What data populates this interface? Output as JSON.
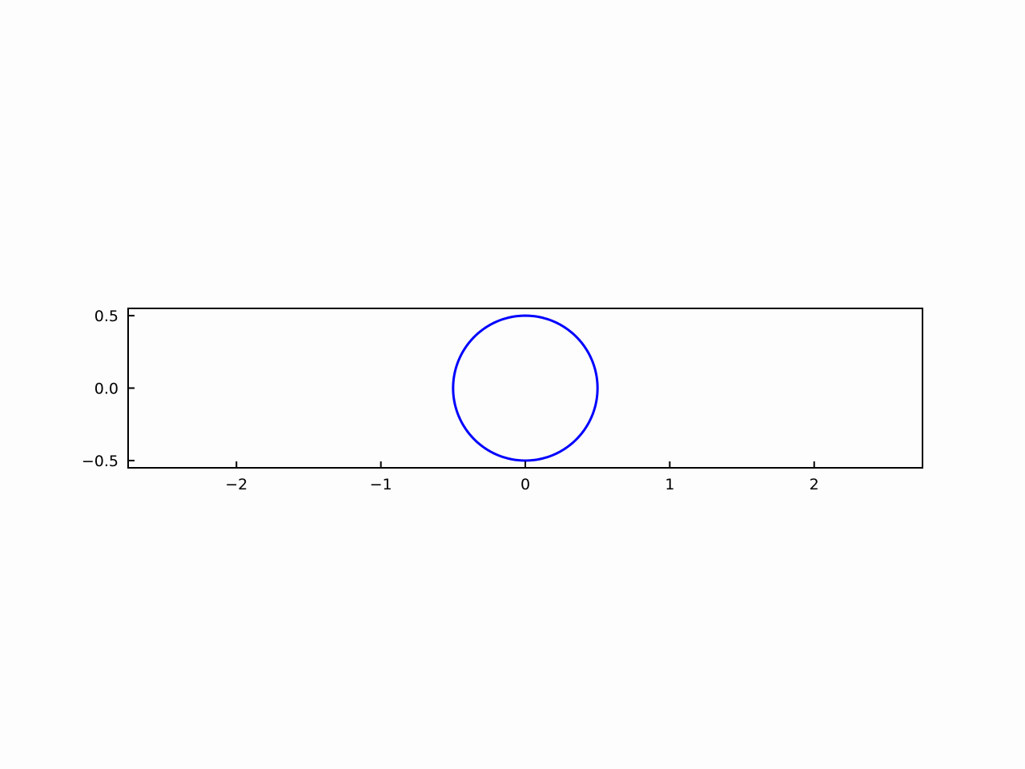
{
  "chart_data": {
    "type": "line",
    "title": "",
    "xlabel": "",
    "ylabel": "",
    "xlim": [
      -2.75,
      2.75
    ],
    "ylim": [
      -0.55,
      0.55
    ],
    "aspect": "equal",
    "grid": false,
    "tick_direction": "in",
    "x_ticks": [
      {
        "value": -2,
        "label": "−2"
      },
      {
        "value": -1,
        "label": "−1"
      },
      {
        "value": 0,
        "label": "0"
      },
      {
        "value": 1,
        "label": "1"
      },
      {
        "value": 2,
        "label": "2"
      }
    ],
    "y_ticks": [
      {
        "value": -0.5,
        "label": "−0.5"
      },
      {
        "value": 0.0,
        "label": "0.0"
      },
      {
        "value": 0.5,
        "label": "0.5"
      }
    ],
    "series": [
      {
        "shape": "circle",
        "center": [
          0,
          0
        ],
        "radius": 0.5,
        "color": "#0000ff"
      }
    ]
  }
}
